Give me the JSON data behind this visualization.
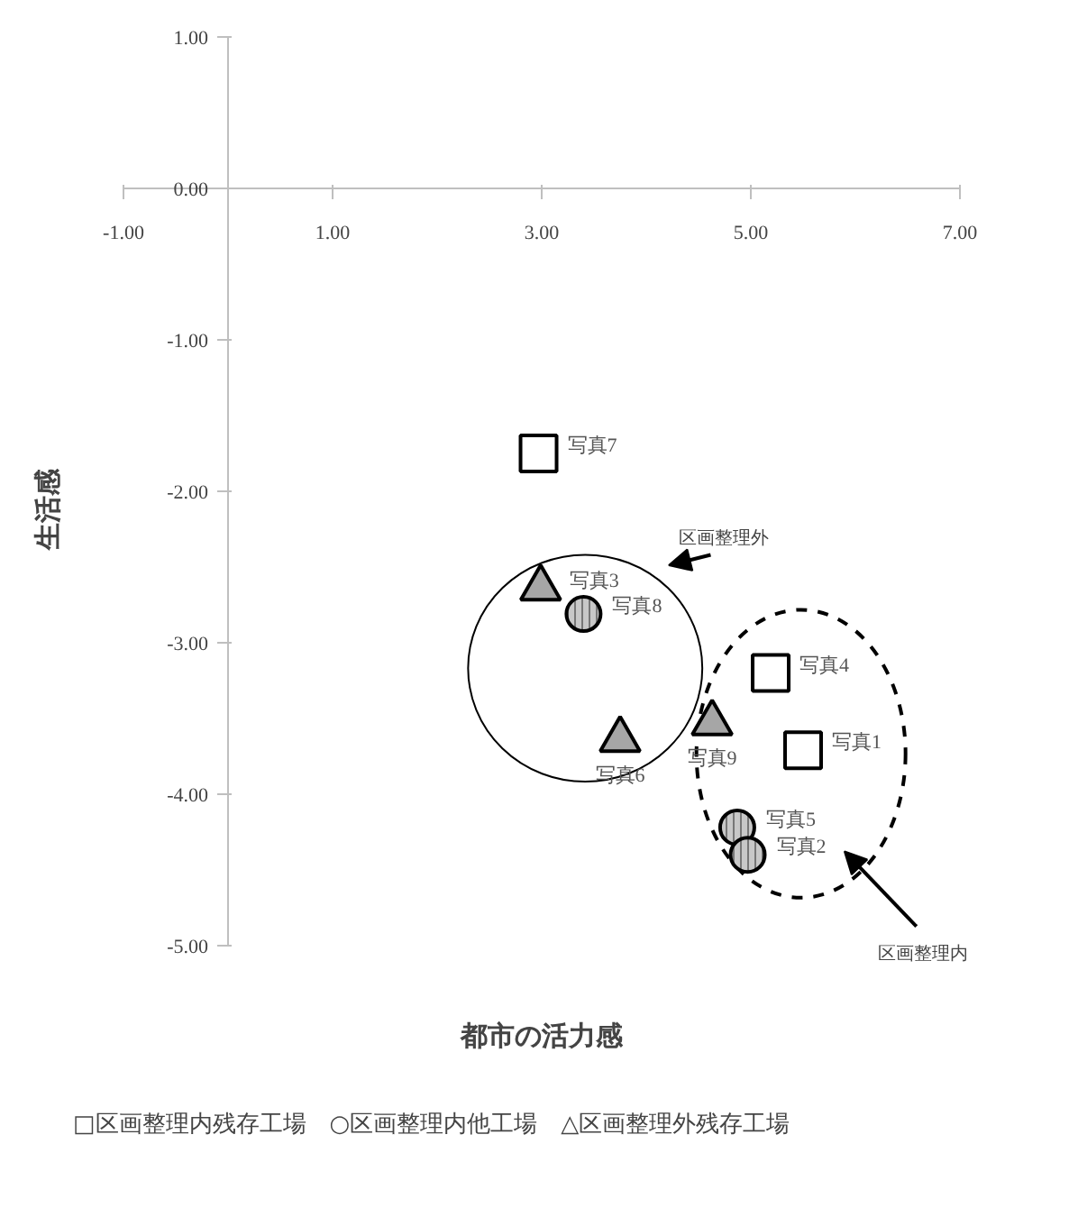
{
  "chart_data": {
    "type": "scatter",
    "xlabel": "都市の活力感",
    "ylabel": "生活感",
    "xlim": [
      -1,
      7
    ],
    "ylim": [
      -5,
      1
    ],
    "xticks": [
      {
        "value": -1,
        "label": "-1.00"
      },
      {
        "value": 1,
        "label": "1.00"
      },
      {
        "value": 3,
        "label": "3.00"
      },
      {
        "value": 5,
        "label": "5.00"
      },
      {
        "value": 7,
        "label": "7.00"
      }
    ],
    "yticks": [
      {
        "value": 1,
        "label": "1.00"
      },
      {
        "value": 0,
        "label": "0.00"
      },
      {
        "value": -1,
        "label": "-1.00"
      },
      {
        "value": -2,
        "label": "-2.00"
      },
      {
        "value": -3,
        "label": "-3.00"
      },
      {
        "value": -4,
        "label": "-4.00"
      },
      {
        "value": -5,
        "label": "-5.00"
      }
    ],
    "grid": false,
    "series": [
      {
        "marker": "square",
        "color": "#ffffff",
        "x": [
          2.97,
          5.19,
          5.5
        ],
        "values": [
          -1.75,
          -3.2,
          -3.71
        ],
        "value_labels": [
          "写真7",
          "写真4",
          "写真1"
        ]
      },
      {
        "marker": "circle",
        "color": "#c8c8c8",
        "x": [
          3.4,
          4.87,
          4.97
        ],
        "values": [
          -2.81,
          -4.22,
          -4.4
        ],
        "value_labels": [
          "写真8",
          "写真5",
          "写真2"
        ]
      },
      {
        "marker": "triangle",
        "color": "#a6a6a6",
        "x": [
          2.99,
          3.75,
          4.63
        ],
        "values": [
          -2.64,
          -3.64,
          -3.53
        ],
        "value_labels": [
          "写真3",
          "写真6",
          "写真9"
        ]
      }
    ],
    "annotations": [
      "区画整理外",
      "区画整理内",
      "□区画整理内残存工場　○区画整理内他工場　△区画整理外残存工場"
    ]
  }
}
